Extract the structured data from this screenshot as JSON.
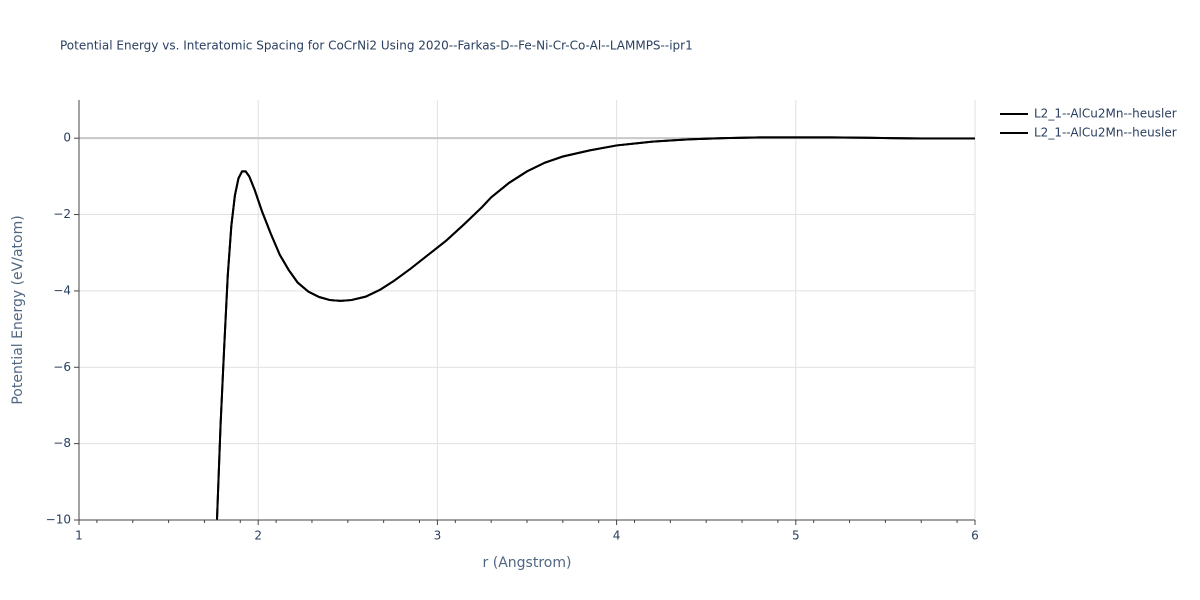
{
  "chart_data": {
    "type": "line",
    "title": "Potential Energy vs. Interatomic Spacing for CoCrNi2 Using 2020--Farkas-D--Fe-Ni-Cr-Co-Al--LAMMPS--ipr1",
    "x_label": "r (Angstrom)",
    "y_label": "Potential Energy (eV/atom)",
    "xlim": [
      1,
      6
    ],
    "ylim": [
      -10,
      1
    ],
    "xticks": [
      1,
      2,
      3,
      4,
      5,
      6
    ],
    "yticks": [
      {
        "value": -10,
        "label": "−10"
      },
      {
        "value": -8,
        "label": "−8"
      },
      {
        "value": -6,
        "label": "−6"
      },
      {
        "value": -4,
        "label": "−4"
      },
      {
        "value": -2,
        "label": "−2"
      },
      0
    ],
    "grid": true,
    "legend": "right",
    "x": [
      1.77,
      1.79,
      1.81,
      1.83,
      1.85,
      1.87,
      1.89,
      1.91,
      1.93,
      1.95,
      1.98,
      2.02,
      2.07,
      2.12,
      2.17,
      2.22,
      2.28,
      2.34,
      2.4,
      2.46,
      2.52,
      2.6,
      2.68,
      2.76,
      2.85,
      2.95,
      3.05,
      3.15,
      3.25,
      3.3,
      3.4,
      3.5,
      3.6,
      3.7,
      3.85,
      4.0,
      4.2,
      4.4,
      4.6,
      4.8,
      5.0,
      5.2,
      5.4,
      5.7,
      6.0
    ],
    "series": [
      {
        "name": "L2_1--AlCu2Mn--heusler",
        "color": "#000000",
        "values": [
          -10,
          -7.5,
          -5.5,
          -3.6,
          -2.3,
          -1.5,
          -1.05,
          -0.87,
          -0.87,
          -1.0,
          -1.35,
          -1.9,
          -2.5,
          -3.05,
          -3.45,
          -3.78,
          -4.02,
          -4.16,
          -4.24,
          -4.26,
          -4.24,
          -4.15,
          -3.97,
          -3.73,
          -3.42,
          -3.05,
          -2.68,
          -2.25,
          -1.8,
          -1.55,
          -1.17,
          -0.87,
          -0.64,
          -0.48,
          -0.32,
          -0.19,
          -0.09,
          -0.03,
          0,
          0.02,
          0.02,
          0.02,
          0.01,
          -0.01,
          -0.01
        ]
      },
      {
        "name": "L2_1--AlCu2Mn--heusler",
        "color": "#000000",
        "values": [
          -10,
          -7.5,
          -5.5,
          -3.6,
          -2.3,
          -1.5,
          -1.05,
          -0.87,
          -0.87,
          -1.0,
          -1.35,
          -1.9,
          -2.5,
          -3.05,
          -3.45,
          -3.78,
          -4.02,
          -4.16,
          -4.24,
          -4.26,
          -4.24,
          -4.15,
          -3.97,
          -3.73,
          -3.42,
          -3.05,
          -2.68,
          -2.25,
          -1.8,
          -1.55,
          -1.17,
          -0.87,
          -0.64,
          -0.48,
          -0.32,
          -0.19,
          -0.09,
          -0.03,
          0,
          0.02,
          0.02,
          0.02,
          0.01,
          -0.01,
          -0.01
        ]
      }
    ]
  }
}
